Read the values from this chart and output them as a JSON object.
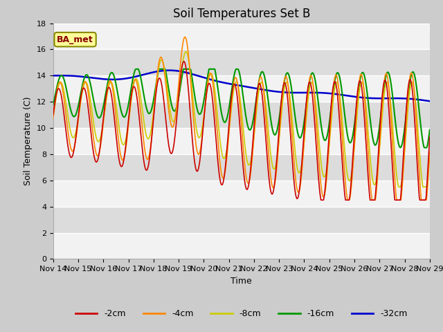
{
  "title": "Soil Temperatures Set B",
  "xlabel": "Time",
  "ylabel": "Soil Temperature (C)",
  "ylim": [
    0,
    18
  ],
  "xlim": [
    0,
    15
  ],
  "x_tick_labels": [
    "Nov 14",
    "Nov 15",
    "Nov 16",
    "Nov 17",
    "Nov 18",
    "Nov 19",
    "Nov 20",
    "Nov 21",
    "Nov 22",
    "Nov 23",
    "Nov 24",
    "Nov 25",
    "Nov 26",
    "Nov 27",
    "Nov 28",
    "Nov 29"
  ],
  "legend_labels": [
    "-2cm",
    "-4cm",
    "-8cm",
    "-16cm",
    "-32cm"
  ],
  "legend_colors": [
    "#cc0000",
    "#ff8800",
    "#cccc00",
    "#009900",
    "#0000cc"
  ],
  "annotation_text": "BA_met",
  "annotation_box_color": "#ffff99",
  "annotation_text_color": "#880000",
  "title_fontsize": 12,
  "axis_fontsize": 9,
  "tick_fontsize": 8
}
